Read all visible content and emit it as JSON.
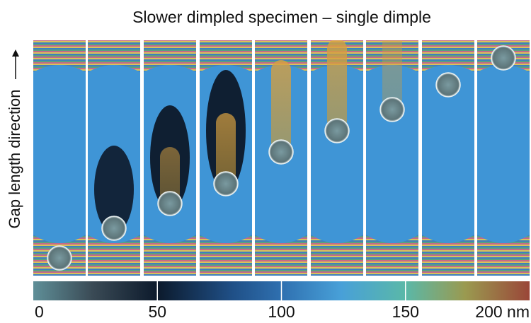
{
  "title": "Slower dimpled specimen – single dimple",
  "axis_label": "Gap length direction",
  "colorbar": {
    "lim": [
      0,
      200
    ],
    "ticks": [
      0,
      50,
      100,
      150,
      {
        "value": 200,
        "label": "200 nm"
      }
    ]
  }
}
